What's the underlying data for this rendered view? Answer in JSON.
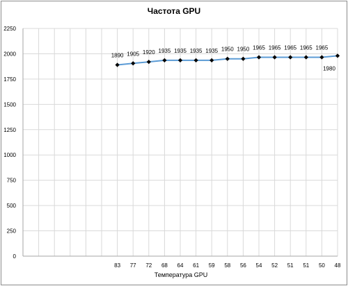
{
  "chart_data": {
    "type": "line",
    "title": "Частота GPU",
    "xlabel": "Температура  GPU",
    "ylabel": "",
    "ylim": [
      0,
      2250
    ],
    "yticks": [
      0,
      250,
      500,
      750,
      1000,
      1250,
      1500,
      1750,
      2000,
      2250
    ],
    "categories": [
      "",
      "",
      "",
      "",
      "",
      "",
      "83",
      "77",
      "72",
      "68",
      "64",
      "61",
      "59",
      "58",
      "56",
      "54",
      "52",
      "51",
      "51",
      "50",
      "48"
    ],
    "series": [
      {
        "color": "#5b9bd5",
        "values": [
          null,
          null,
          null,
          null,
          null,
          null,
          1890,
          1905,
          1920,
          1935,
          1935,
          1935,
          1935,
          1950,
          1950,
          1965,
          1965,
          1965,
          1965,
          1965,
          1980
        ]
      }
    ],
    "grid": true,
    "legend": "none"
  }
}
